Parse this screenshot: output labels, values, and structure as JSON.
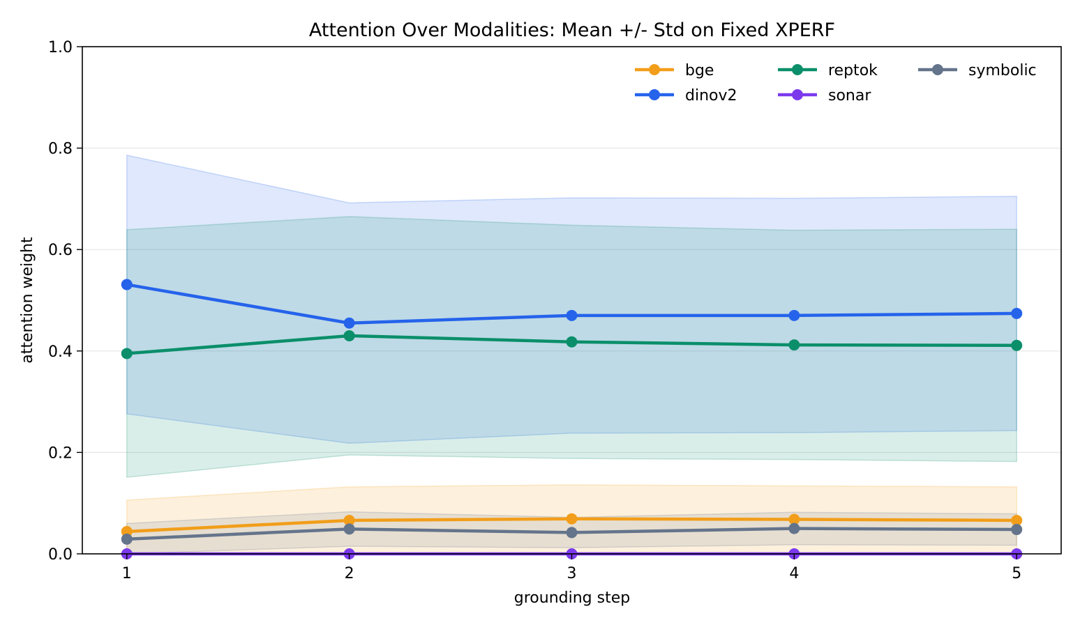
{
  "chart_data": {
    "type": "line",
    "title": "Attention Over Modalities: Mean +/- Std on Fixed XPERF",
    "xlabel": "grounding step",
    "ylabel": "attention weight",
    "x": [
      1,
      2,
      3,
      4,
      5
    ],
    "xticks": [
      "1",
      "2",
      "3",
      "4",
      "5"
    ],
    "xlim": [
      0.8,
      5.2
    ],
    "ylim": [
      0.0,
      1.0
    ],
    "yticks": [
      "0.0",
      "0.2",
      "0.4",
      "0.6",
      "0.8",
      "1.0"
    ],
    "ytick_values": [
      0.0,
      0.2,
      0.4,
      0.6,
      0.8,
      1.0
    ],
    "grid": "horizontal",
    "legend_position": "top-right",
    "series": [
      {
        "name": "bge",
        "color": "#f29e1a",
        "values": [
          0.044,
          0.066,
          0.069,
          0.068,
          0.066
        ],
        "std": [
          0.062,
          0.066,
          0.067,
          0.066,
          0.066
        ]
      },
      {
        "name": "dinov2",
        "color": "#2563eb",
        "values": [
          0.531,
          0.455,
          0.47,
          0.47,
          0.474
        ],
        "std": [
          0.255,
          0.237,
          0.232,
          0.231,
          0.231
        ]
      },
      {
        "name": "reptok",
        "color": "#0a8f6a",
        "values": [
          0.395,
          0.43,
          0.418,
          0.412,
          0.411
        ],
        "std": [
          0.244,
          0.235,
          0.23,
          0.226,
          0.229
        ]
      },
      {
        "name": "sonar",
        "color": "#7c3aed",
        "values": [
          0.0,
          0.0,
          0.0,
          0.0,
          0.0
        ],
        "std": [
          0.0,
          0.0,
          0.0,
          0.0,
          0.0
        ]
      },
      {
        "name": "symbolic",
        "color": "#64748b",
        "values": [
          0.029,
          0.049,
          0.042,
          0.05,
          0.048
        ],
        "std": [
          0.031,
          0.034,
          0.03,
          0.032,
          0.031
        ]
      }
    ],
    "legend_order": [
      "bge",
      "dinov2",
      "reptok",
      "sonar",
      "symbolic"
    ]
  }
}
